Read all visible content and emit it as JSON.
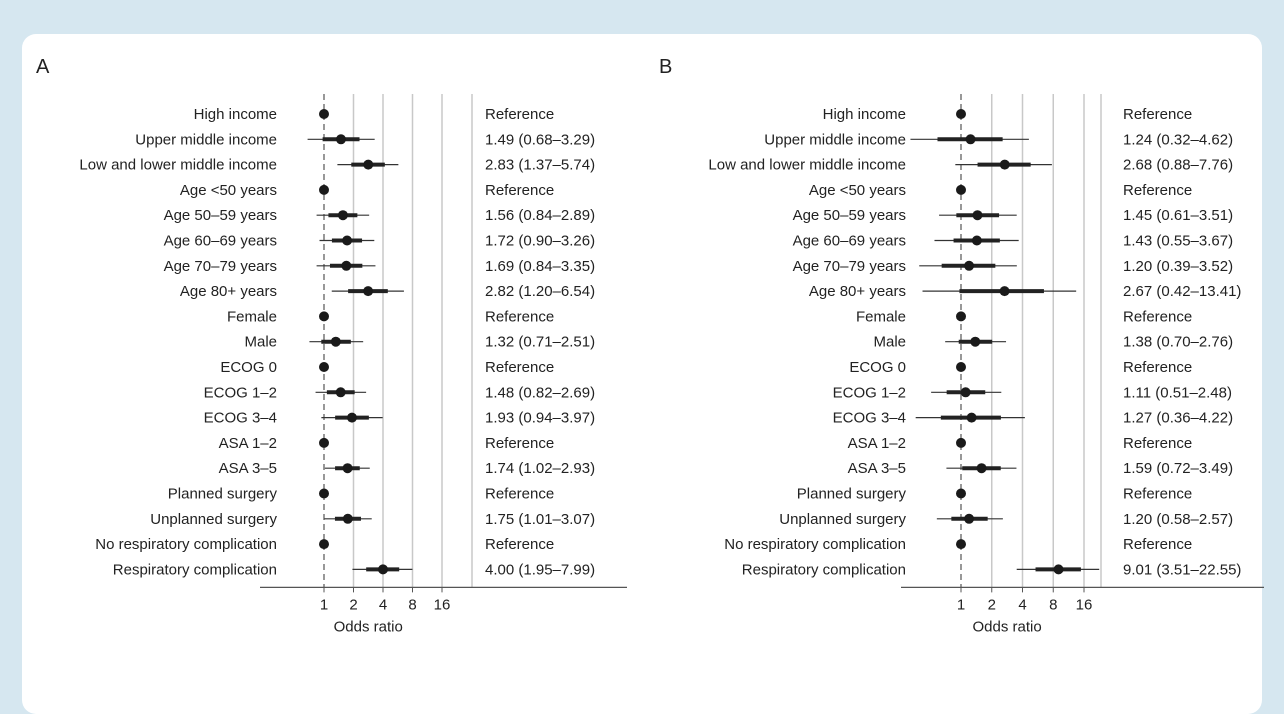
{
  "chart_data": [
    {
      "type": "forest",
      "panel_label": "A",
      "xlabel": "Odds ratio",
      "x_scale": "log2",
      "xlim": [
        0.55,
        28
      ],
      "ticks": [
        1,
        2,
        4,
        8,
        16
      ],
      "vertical_gridlines": [
        1,
        2,
        4,
        8,
        16
      ],
      "reference_line": 1,
      "rows": [
        {
          "label": "High income",
          "or": 1,
          "lo": 1,
          "hi": 1,
          "text": "Reference",
          "ref": true
        },
        {
          "label": "Upper middle income",
          "or": 1.49,
          "lo": 0.68,
          "hi": 3.29,
          "text": "1.49 (0.68–3.29)"
        },
        {
          "label": "Low and lower middle income",
          "or": 2.83,
          "lo": 1.37,
          "hi": 5.74,
          "text": "2.83 (1.37–5.74)"
        },
        {
          "label": "Age <50 years",
          "or": 1,
          "lo": 1,
          "hi": 1,
          "text": "Reference",
          "ref": true
        },
        {
          "label": "Age 50–59 years",
          "or": 1.56,
          "lo": 0.84,
          "hi": 2.89,
          "text": "1.56 (0.84–2.89)"
        },
        {
          "label": "Age 60–69 years",
          "or": 1.72,
          "lo": 0.9,
          "hi": 3.26,
          "text": "1.72 (0.90–3.26)"
        },
        {
          "label": "Age 70–79 years",
          "or": 1.69,
          "lo": 0.84,
          "hi": 3.35,
          "text": "1.69 (0.84–3.35)"
        },
        {
          "label": "Age 80+ years",
          "or": 2.82,
          "lo": 1.2,
          "hi": 6.54,
          "text": "2.82 (1.20–6.54)"
        },
        {
          "label": "Female",
          "or": 1,
          "lo": 1,
          "hi": 1,
          "text": "Reference",
          "ref": true
        },
        {
          "label": "Male",
          "or": 1.32,
          "lo": 0.71,
          "hi": 2.51,
          "text": "1.32 (0.71–2.51)"
        },
        {
          "label": "ECOG 0",
          "or": 1,
          "lo": 1,
          "hi": 1,
          "text": "Reference",
          "ref": true
        },
        {
          "label": "ECOG 1–2",
          "or": 1.48,
          "lo": 0.82,
          "hi": 2.69,
          "text": "1.48 (0.82–2.69)"
        },
        {
          "label": "ECOG 3–4",
          "or": 1.93,
          "lo": 0.94,
          "hi": 3.97,
          "text": "1.93 (0.94–3.97)"
        },
        {
          "label": "ASA 1–2",
          "or": 1,
          "lo": 1,
          "hi": 1,
          "text": "Reference",
          "ref": true
        },
        {
          "label": "ASA 3–5",
          "or": 1.74,
          "lo": 1.02,
          "hi": 2.93,
          "text": "1.74 (1.02–2.93)"
        },
        {
          "label": "Planned surgery",
          "or": 1,
          "lo": 1,
          "hi": 1,
          "text": "Reference",
          "ref": true
        },
        {
          "label": "Unplanned surgery",
          "or": 1.75,
          "lo": 1.01,
          "hi": 3.07,
          "text": "1.75 (1.01–3.07)"
        },
        {
          "label": "No respiratory complication",
          "or": 1,
          "lo": 1,
          "hi": 1,
          "text": "Reference",
          "ref": true
        },
        {
          "label": "Respiratory complication",
          "or": 4.0,
          "lo": 1.95,
          "hi": 7.99,
          "text": "4.00 (1.95–7.99)"
        }
      ]
    },
    {
      "type": "forest",
      "panel_label": "B",
      "xlabel": "Odds ratio",
      "x_scale": "log2",
      "xlim": [
        0.55,
        28
      ],
      "ticks": [
        1,
        2,
        4,
        8,
        16
      ],
      "vertical_gridlines": [
        1,
        2,
        4,
        8,
        16
      ],
      "reference_line": 1,
      "rows": [
        {
          "label": "High income",
          "or": 1,
          "lo": 1,
          "hi": 1,
          "text": "Reference",
          "ref": true
        },
        {
          "label": "Upper middle income",
          "or": 1.24,
          "lo": 0.32,
          "hi": 4.62,
          "text": "1.24 (0.32–4.62)"
        },
        {
          "label": "Low and lower middle income",
          "or": 2.68,
          "lo": 0.88,
          "hi": 7.76,
          "text": "2.68 (0.88–7.76)"
        },
        {
          "label": "Age <50 years",
          "or": 1,
          "lo": 1,
          "hi": 1,
          "text": "Reference",
          "ref": true
        },
        {
          "label": "Age 50–59 years",
          "or": 1.45,
          "lo": 0.61,
          "hi": 3.51,
          "text": "1.45 (0.61–3.51)"
        },
        {
          "label": "Age 60–69 years",
          "or": 1.43,
          "lo": 0.55,
          "hi": 3.67,
          "text": "1.43 (0.55–3.67)"
        },
        {
          "label": "Age 70–79 years",
          "or": 1.2,
          "lo": 0.39,
          "hi": 3.52,
          "text": "1.20 (0.39–3.52)"
        },
        {
          "label": "Age 80+ years",
          "or": 2.67,
          "lo": 0.42,
          "hi": 13.41,
          "text": "2.67 (0.42–13.41)"
        },
        {
          "label": "Female",
          "or": 1,
          "lo": 1,
          "hi": 1,
          "text": "Reference",
          "ref": true
        },
        {
          "label": "Male",
          "or": 1.38,
          "lo": 0.7,
          "hi": 2.76,
          "text": "1.38 (0.70–2.76)"
        },
        {
          "label": "ECOG 0",
          "or": 1,
          "lo": 1,
          "hi": 1,
          "text": "Reference",
          "ref": true
        },
        {
          "label": "ECOG 1–2",
          "or": 1.11,
          "lo": 0.51,
          "hi": 2.48,
          "text": "1.11 (0.51–2.48)"
        },
        {
          "label": "ECOG 3–4",
          "or": 1.27,
          "lo": 0.36,
          "hi": 4.22,
          "text": "1.27 (0.36–4.22)"
        },
        {
          "label": "ASA 1–2",
          "or": 1,
          "lo": 1,
          "hi": 1,
          "text": "Reference",
          "ref": true
        },
        {
          "label": "ASA 3–5",
          "or": 1.59,
          "lo": 0.72,
          "hi": 3.49,
          "text": "1.59 (0.72–3.49)"
        },
        {
          "label": "Planned surgery",
          "or": 1,
          "lo": 1,
          "hi": 1,
          "text": "Reference",
          "ref": true
        },
        {
          "label": "Unplanned surgery",
          "or": 1.2,
          "lo": 0.58,
          "hi": 2.57,
          "text": "1.20 (0.58–2.57)"
        },
        {
          "label": "No respiratory complication",
          "or": 1,
          "lo": 1,
          "hi": 1,
          "text": "Reference",
          "ref": true
        },
        {
          "label": "Respiratory complication",
          "or": 9.01,
          "lo": 3.51,
          "hi": 22.55,
          "text": "9.01 (3.51–22.55)"
        }
      ]
    }
  ]
}
